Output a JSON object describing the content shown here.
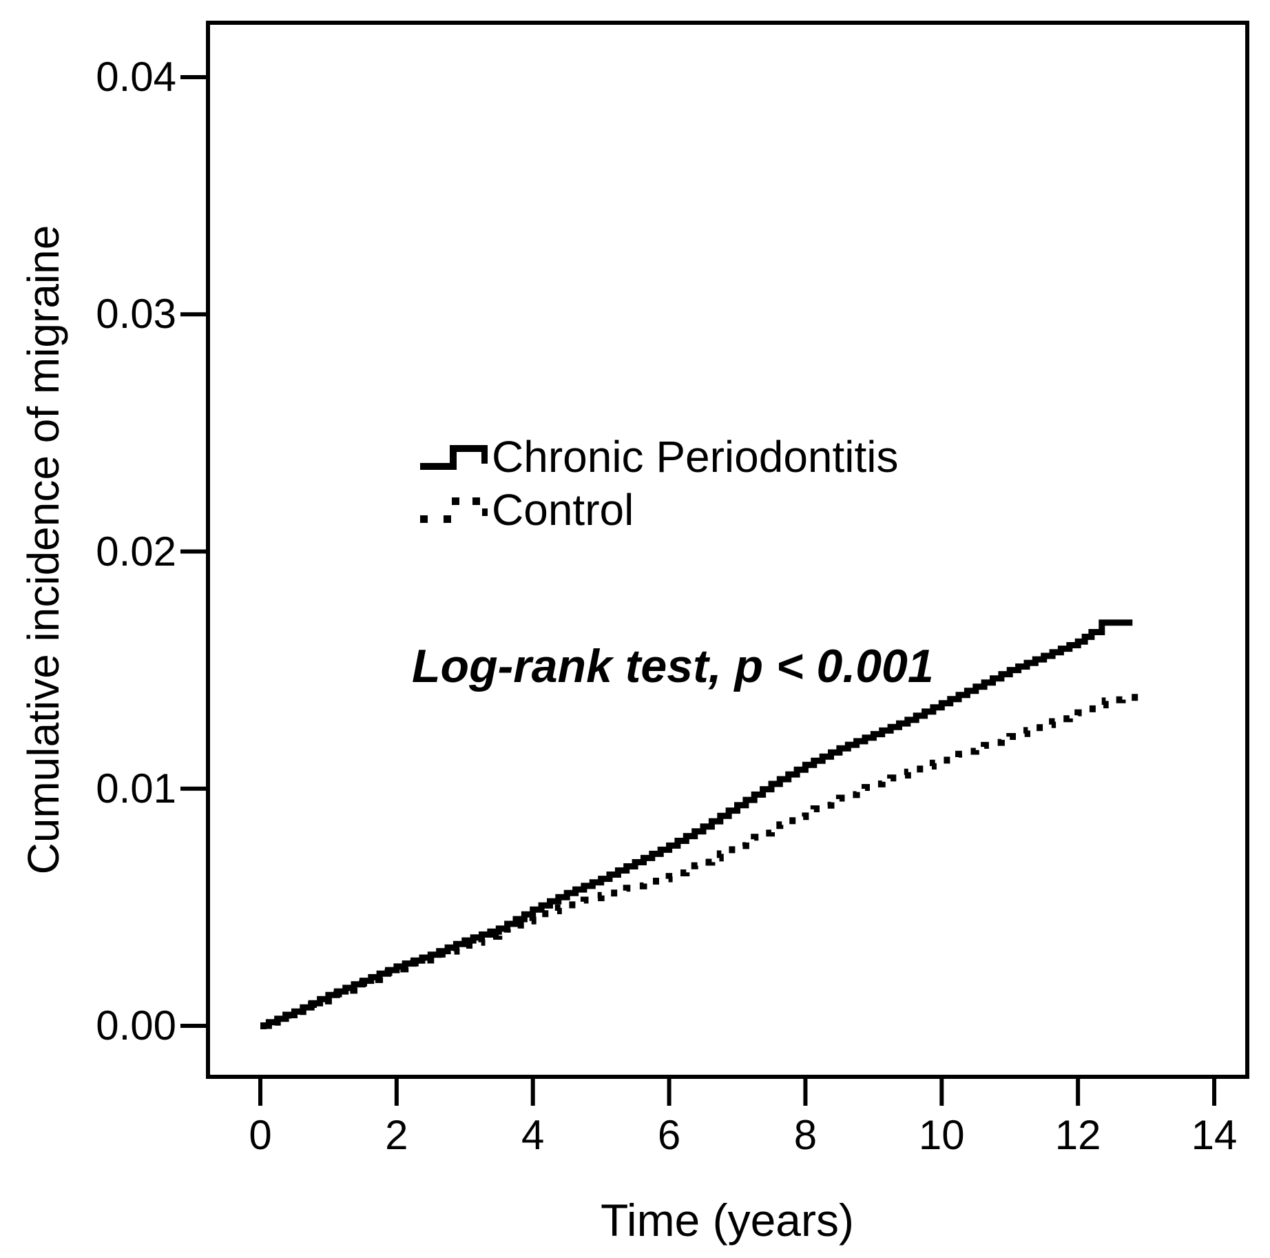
{
  "chart_data": {
    "type": "line",
    "subtype": "kaplan-meier-cumulative-incidence",
    "title": "",
    "xlabel": "Time (years)",
    "ylabel": "Cumulative incidence of migraine",
    "annotation": "Log-rank test, p < 0.001",
    "grid": false,
    "legend_position": "upper-center-inside",
    "xlim": [
      -0.77,
      14.5
    ],
    "ylim": [
      -0.00215,
      0.0423
    ],
    "axis_color": "#000000",
    "background_color": "#ffffff",
    "xticks": [
      {
        "v": 0,
        "label": "0"
      },
      {
        "v": 2,
        "label": "2"
      },
      {
        "v": 4,
        "label": "4"
      },
      {
        "v": 6,
        "label": "6"
      },
      {
        "v": 8,
        "label": "8"
      },
      {
        "v": 10,
        "label": "10"
      },
      {
        "v": 12,
        "label": "12"
      },
      {
        "v": 14,
        "label": "14"
      }
    ],
    "yticks": [
      {
        "v": 0.0,
        "label": "0.00"
      },
      {
        "v": 0.01,
        "label": "0.01"
      },
      {
        "v": 0.02,
        "label": "0.02"
      },
      {
        "v": 0.03,
        "label": "0.03"
      },
      {
        "v": 0.04,
        "label": "0.04"
      }
    ],
    "series": [
      {
        "name": "Chronic Periodontitis",
        "style": "solid",
        "color": "#000000",
        "points": [
          [
            0,
            0.0
          ],
          [
            0.5,
            0.0006
          ],
          [
            1,
            0.0013
          ],
          [
            1.5,
            0.0019
          ],
          [
            2,
            0.0025
          ],
          [
            2.5,
            0.003
          ],
          [
            3,
            0.0036
          ],
          [
            3.5,
            0.0041
          ],
          [
            4,
            0.0049
          ],
          [
            4.5,
            0.0056
          ],
          [
            5,
            0.0062
          ],
          [
            5.5,
            0.0069
          ],
          [
            6,
            0.0076
          ],
          [
            6.5,
            0.0084
          ],
          [
            7,
            0.0093
          ],
          [
            7.5,
            0.0102
          ],
          [
            8,
            0.011
          ],
          [
            8.5,
            0.0117
          ],
          [
            9,
            0.0123
          ],
          [
            9.5,
            0.0129
          ],
          [
            10,
            0.0136
          ],
          [
            10.5,
            0.0143
          ],
          [
            11,
            0.015
          ],
          [
            11.5,
            0.0156
          ],
          [
            12,
            0.0162
          ],
          [
            12.2,
            0.0166
          ],
          [
            12.35,
            0.017
          ],
          [
            12.8,
            0.017
          ]
        ]
      },
      {
        "name": "Control",
        "style": "dotted",
        "color": "#000000",
        "points": [
          [
            0,
            0.0
          ],
          [
            0.5,
            0.0006
          ],
          [
            1,
            0.0012
          ],
          [
            1.5,
            0.0018
          ],
          [
            2,
            0.0024
          ],
          [
            2.5,
            0.0029
          ],
          [
            3,
            0.0034
          ],
          [
            3.5,
            0.0039
          ],
          [
            4,
            0.0046
          ],
          [
            4.5,
            0.0051
          ],
          [
            5,
            0.0055
          ],
          [
            5.5,
            0.0059
          ],
          [
            6,
            0.0063
          ],
          [
            6.5,
            0.0069
          ],
          [
            7,
            0.0076
          ],
          [
            7.5,
            0.0083
          ],
          [
            8,
            0.009
          ],
          [
            8.5,
            0.0096
          ],
          [
            9,
            0.0102
          ],
          [
            9.5,
            0.0107
          ],
          [
            10,
            0.0112
          ],
          [
            10.5,
            0.0117
          ],
          [
            11,
            0.0122
          ],
          [
            11.5,
            0.0127
          ],
          [
            12,
            0.0132
          ],
          [
            12.4,
            0.0137
          ],
          [
            12.9,
            0.0139
          ]
        ]
      }
    ]
  }
}
